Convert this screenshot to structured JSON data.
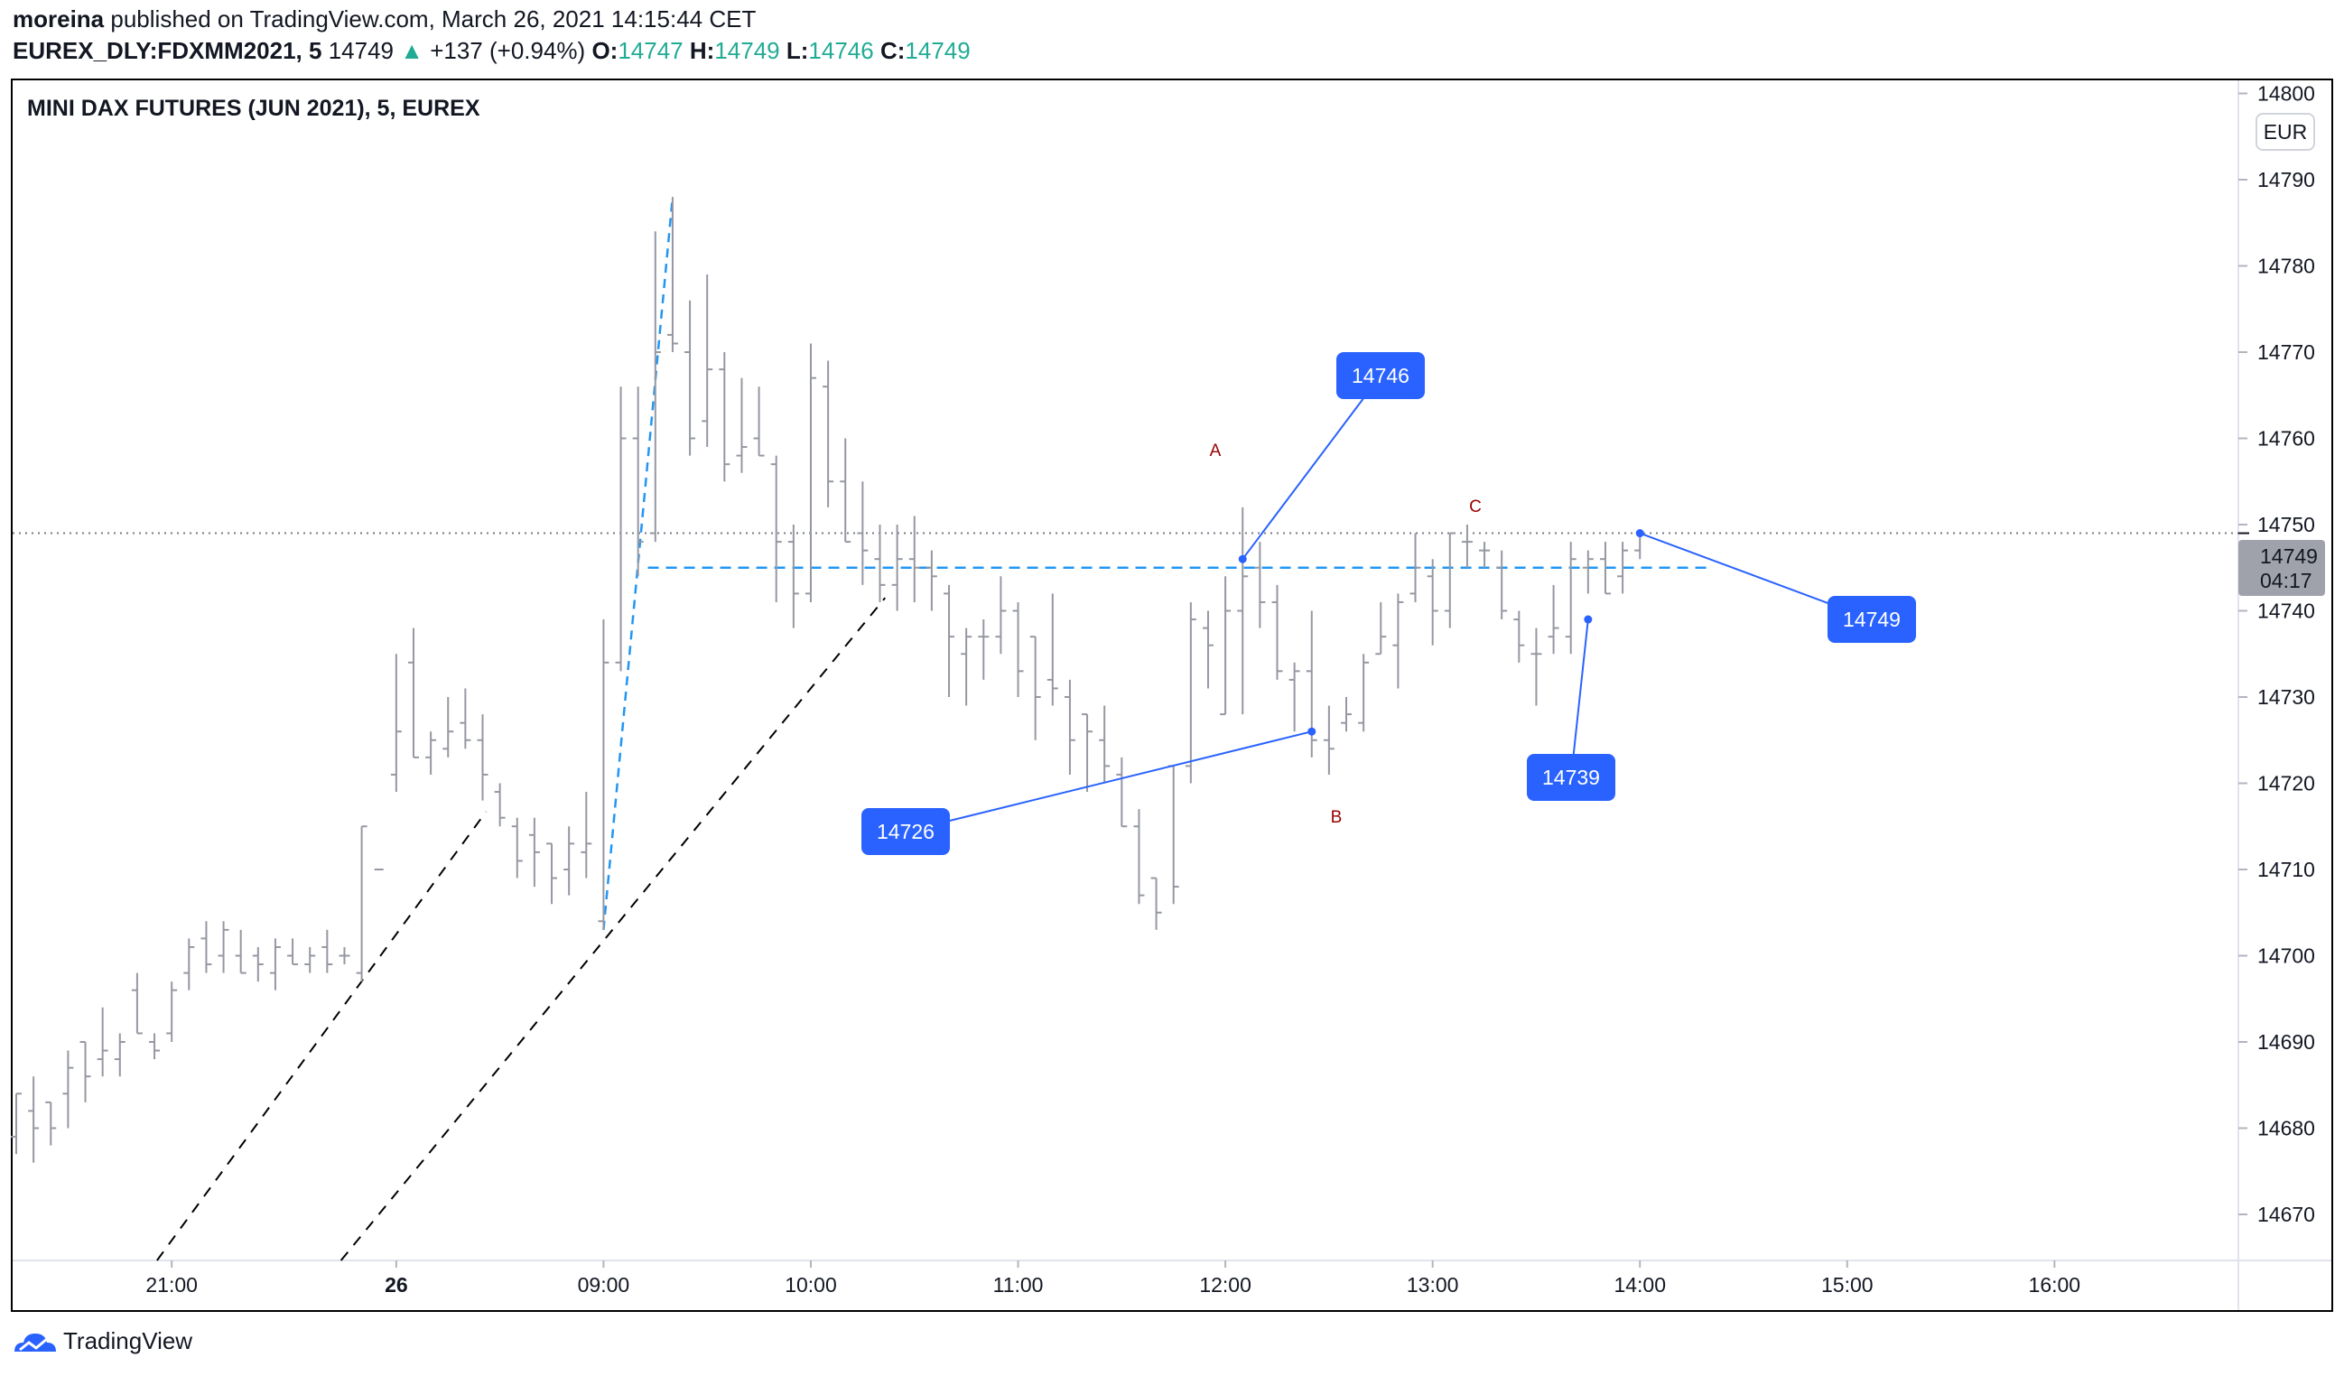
{
  "header": {
    "author": "moreina",
    "published": " published on TradingView.com, March 26, 2021 14:15:44 CET",
    "symbol": "EUREX_DLY:FDXMM2021, 5",
    "last": "14749",
    "change": "+137 (+0.94%)",
    "o_label": "O:",
    "o": "14747",
    "h_label": "H:",
    "h": "14749",
    "l_label": "L:",
    "l": "14746",
    "c_label": "C:",
    "c": "14749"
  },
  "chart_title": "MINI DAX FUTURES (JUN 2021), 5, EUREX",
  "currency_button": "EUR",
  "price_label": {
    "price": "14749",
    "countdown": "04:17"
  },
  "callouts": [
    "14746",
    "14726",
    "14739",
    "14749"
  ],
  "wave_labels": [
    "A",
    "B",
    "C"
  ],
  "footer": {
    "brand": "TradingView"
  },
  "colors": {
    "bar": "#9598a1",
    "callout": "#2962ff",
    "dashed": "#2196f3",
    "wave": "#990000",
    "up": "#22ab94"
  },
  "chart_data": {
    "type": "ohlc",
    "title": "MINI DAX FUTURES (JUN 2021), 5, EUREX",
    "interval": "5 min",
    "ylim": [
      14664,
      14800
    ],
    "y_ticks": [
      "14800",
      "14790",
      "14780",
      "14770",
      "14760",
      "14750",
      "14740",
      "14730",
      "14720",
      "14710",
      "14700",
      "14690",
      "14680",
      "14670"
    ],
    "x_ticks": [
      {
        "label": "21:00",
        "index": 9,
        "bold": false
      },
      {
        "label": "26",
        "index": 22,
        "bold": true
      },
      {
        "label": "09:00",
        "index": 34,
        "bold": false
      },
      {
        "label": "10:00",
        "index": 46,
        "bold": false
      },
      {
        "label": "11:00",
        "index": 58,
        "bold": false
      },
      {
        "label": "12:00",
        "index": 70,
        "bold": false
      },
      {
        "label": "13:00",
        "index": 82,
        "bold": false
      },
      {
        "label": "14:00",
        "index": 94,
        "bold": false
      },
      {
        "label": "15:00",
        "index": 106,
        "bold": false
      },
      {
        "label": "16:00",
        "index": 118,
        "bold": false
      }
    ],
    "current_price": 14749,
    "support_level": 14745,
    "bars_ohlc": [
      [
        14679,
        14684,
        14677,
        14684
      ],
      [
        14682,
        14686,
        14676,
        14680
      ],
      [
        14683,
        14683,
        14678,
        14680
      ],
      [
        14684,
        14689,
        14680,
        14687
      ],
      [
        14690,
        14690,
        14683,
        14686
      ],
      [
        14688,
        14694,
        14686,
        14689
      ],
      [
        14688,
        14691,
        14686,
        14690
      ],
      [
        14696,
        14698,
        14691,
        14691
      ],
      [
        14690,
        14691,
        14688,
        14689
      ],
      [
        14691,
        14697,
        14690,
        14696
      ],
      [
        14698,
        14702,
        14696,
        14701
      ],
      [
        14702,
        14704,
        14698,
        14699
      ],
      [
        14700,
        14704,
        14698,
        14703
      ],
      [
        14700,
        14703,
        14698,
        14698
      ],
      [
        14700,
        14701,
        14697,
        14699
      ],
      [
        14698,
        14702,
        14696,
        14701
      ],
      [
        14700,
        14702,
        14699,
        14699
      ],
      [
        14699,
        14701,
        14698,
        14700
      ],
      [
        14701,
        14703,
        14698,
        14699
      ],
      [
        14700,
        14701,
        14699,
        14700
      ],
      [
        14698,
        14715,
        14697,
        14715
      ],
      [
        14710,
        14710,
        14710,
        14710
      ],
      [
        14721,
        14735,
        14719,
        14726
      ],
      [
        14734,
        14738,
        14723,
        14723
      ],
      [
        14723,
        14726,
        14721,
        14725
      ],
      [
        14724,
        14730,
        14723,
        14726
      ],
      [
        14727,
        14731,
        14724,
        14725
      ],
      [
        14725,
        14728,
        14718,
        14721
      ],
      [
        14719,
        14720,
        14715,
        14716
      ],
      [
        14715,
        14716,
        14709,
        14711
      ],
      [
        14714,
        14716,
        14708,
        14712
      ],
      [
        14713,
        14713,
        14706,
        14709
      ],
      [
        14710,
        14715,
        14707,
        14713
      ],
      [
        14712,
        14719,
        14709,
        14713
      ],
      [
        14704,
        14739,
        14703,
        14734
      ],
      [
        14734,
        14766,
        14733,
        14760
      ],
      [
        14760,
        14766,
        14744,
        14748
      ],
      [
        14749,
        14784,
        14748,
        14770
      ],
      [
        14772,
        14788,
        14770,
        14771
      ],
      [
        14770,
        14776,
        14758,
        14760
      ],
      [
        14762,
        14779,
        14759,
        14768
      ],
      [
        14768,
        14770,
        14755,
        14757
      ],
      [
        14758,
        14767,
        14756,
        14759
      ],
      [
        14760,
        14766,
        14758,
        14758
      ],
      [
        14757,
        14758,
        14741,
        14748
      ],
      [
        14748,
        14750,
        14738,
        14742
      ],
      [
        14742,
        14771,
        14741,
        14767
      ],
      [
        14766,
        14769,
        14752,
        14755
      ],
      [
        14755,
        14760,
        14748,
        14748
      ],
      [
        14749,
        14755,
        14743,
        14747
      ],
      [
        14746,
        14750,
        14741,
        14743
      ],
      [
        14743,
        14750,
        14740,
        14746
      ],
      [
        14746,
        14751,
        14741,
        14745
      ],
      [
        14745,
        14747,
        14740,
        14744
      ],
      [
        14742,
        14743,
        14730,
        14737
      ],
      [
        14735,
        14738,
        14729,
        14737
      ],
      [
        14737,
        14739,
        14732,
        14737
      ],
      [
        14737,
        14744,
        14735,
        14740
      ],
      [
        14740,
        14741,
        14730,
        14733
      ],
      [
        14737,
        14737,
        14725,
        14730
      ],
      [
        14732,
        14742,
        14729,
        14731
      ],
      [
        14730,
        14732,
        14721,
        14725
      ],
      [
        14728,
        14728,
        14719,
        14726
      ],
      [
        14725,
        14729,
        14720,
        14722
      ],
      [
        14721,
        14723,
        14715,
        14715
      ],
      [
        14715,
        14717,
        14706,
        14707
      ],
      [
        14709,
        14709,
        14703,
        14705
      ],
      [
        14722,
        14722,
        14706,
        14708
      ],
      [
        14722,
        14741,
        14720,
        14739
      ],
      [
        14738,
        14740,
        14731,
        14736
      ],
      [
        14728,
        14744,
        14728,
        14740
      ],
      [
        14740,
        14752,
        14728,
        14744
      ],
      [
        14745,
        14748,
        14738,
        14741
      ],
      [
        14741,
        14743,
        14732,
        14733
      ],
      [
        14732,
        14734,
        14726,
        14733
      ],
      [
        14733,
        14740,
        14723,
        14725
      ],
      [
        14725,
        14729,
        14721,
        14724
      ],
      [
        14727,
        14730,
        14726,
        14728
      ],
      [
        14727,
        14735,
        14726,
        14734
      ],
      [
        14735,
        14741,
        14735,
        14737
      ],
      [
        14736,
        14742,
        14731,
        14741
      ],
      [
        14742,
        14749,
        14741,
        14745
      ],
      [
        14744,
        14746,
        14736,
        14740
      ],
      [
        14740,
        14749,
        14738,
        14749
      ],
      [
        14748,
        14750,
        14745,
        14748
      ],
      [
        14747,
        14748,
        14745,
        14747
      ],
      [
        14745,
        14747,
        14739,
        14740
      ],
      [
        14739,
        14740,
        14734,
        14736
      ],
      [
        14735,
        14738,
        14729,
        14735
      ],
      [
        14737,
        14743,
        14735,
        14738
      ],
      [
        14737,
        14748,
        14735,
        14746
      ],
      [
        14745,
        14747,
        14742,
        14746
      ],
      [
        14746,
        14748,
        14742,
        14742
      ],
      [
        14744,
        14748,
        14742,
        14747
      ],
      [
        14747,
        14749,
        14746,
        14749
      ]
    ]
  }
}
